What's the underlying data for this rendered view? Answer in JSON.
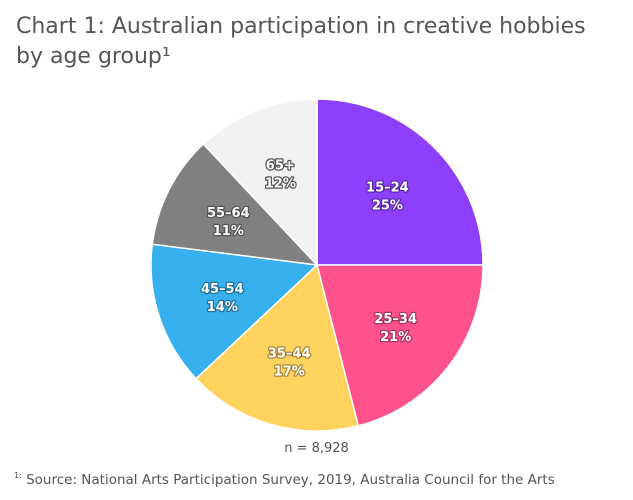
{
  "chart_data": {
    "type": "pie",
    "title": "Chart 1: Australian participation in creative hobbies by age group¹",
    "categories": [
      "15–24",
      "25–34",
      "35–44",
      "45–54",
      "55–64",
      "65+"
    ],
    "values": [
      25,
      21,
      17,
      14,
      11,
      12
    ],
    "value_labels": [
      "25%",
      "21%",
      "17%",
      "14%",
      "11%",
      "12%"
    ],
    "colors": [
      "#8e3ffc",
      "#ff528c",
      "#ffd35e",
      "#36b0ee",
      "#808080",
      "#f2f2f2"
    ],
    "label_colors": [
      "#ffffff",
      "#ffffff",
      "#ffffff",
      "#ffffff",
      "#ffffff",
      "#ffffff"
    ],
    "start_angle_deg": 0,
    "direction": "clockwise",
    "legend": "none",
    "annotations": {
      "sample_size": "n = 8,928"
    }
  },
  "footnote": {
    "marker": "1:",
    "text": "Source: National Arts Participation Survey, 2019, Australia Council for the Arts"
  }
}
